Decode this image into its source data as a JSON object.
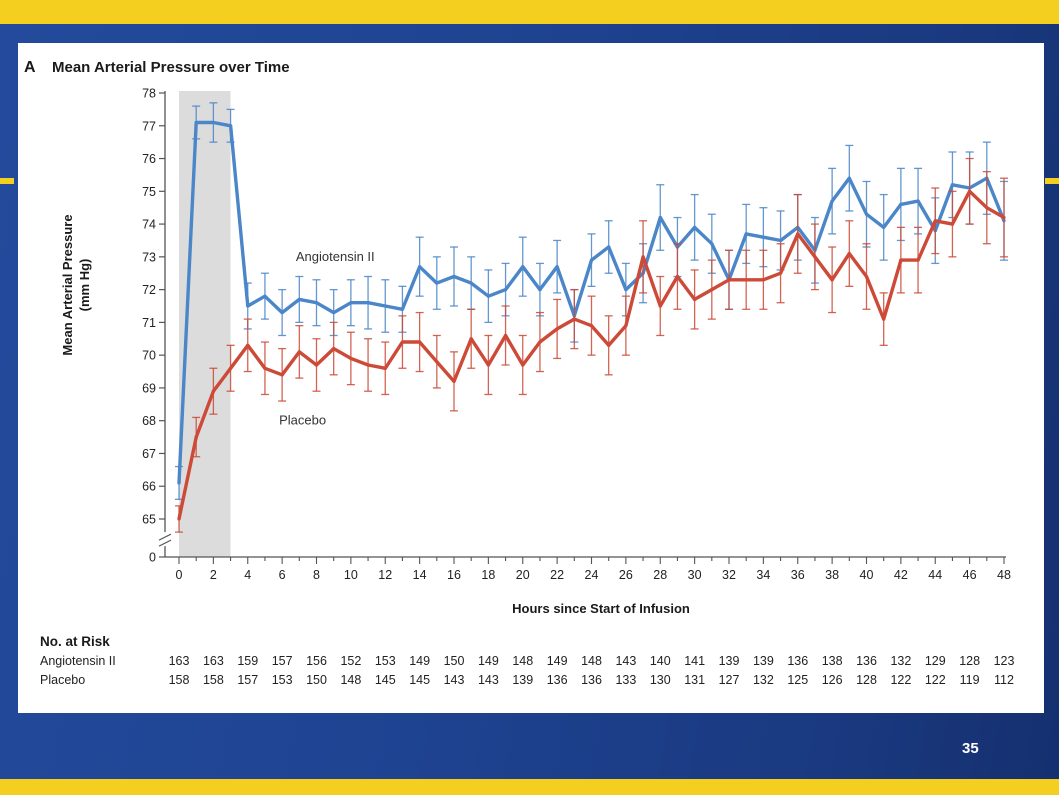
{
  "slide": {
    "number": "35",
    "colors": {
      "band": "#f4cf1f",
      "background": "#1e4391"
    }
  },
  "chart_data": {
    "type": "line",
    "panel_label": "A",
    "title": "Mean Arterial Pressure over Time",
    "xlabel": "Hours since Start of Infusion",
    "ylabel": [
      "Mean Arterial Pressure",
      "(mm Hg)"
    ],
    "xlim": [
      0,
      48
    ],
    "ylim": [
      64.5,
      78
    ],
    "y_axis_break": true,
    "x_ticks": [
      0,
      2,
      4,
      6,
      8,
      10,
      12,
      14,
      16,
      18,
      20,
      22,
      24,
      26,
      28,
      30,
      32,
      34,
      36,
      38,
      40,
      42,
      44,
      46,
      48
    ],
    "y_ticks": [
      65,
      66,
      67,
      68,
      69,
      70,
      71,
      72,
      73,
      74,
      75,
      76,
      77,
      78
    ],
    "y_zero_label": "0",
    "shaded_region": [
      0,
      3
    ],
    "error_bars": true,
    "x": [
      0,
      1,
      2,
      3,
      4,
      5,
      6,
      7,
      8,
      9,
      10,
      11,
      12,
      13,
      14,
      15,
      16,
      17,
      18,
      19,
      20,
      21,
      22,
      23,
      24,
      25,
      26,
      27,
      28,
      29,
      30,
      31,
      32,
      33,
      34,
      35,
      36,
      37,
      38,
      39,
      40,
      41,
      42,
      43,
      44,
      45,
      46,
      47,
      48
    ],
    "series": [
      {
        "name": "Angiotensin II",
        "color": "#4a86c8",
        "values": [
          66.1,
          77.1,
          77.1,
          77.0,
          71.5,
          71.8,
          71.3,
          71.7,
          71.6,
          71.3,
          71.6,
          71.6,
          71.5,
          71.4,
          72.7,
          72.2,
          72.4,
          72.2,
          71.8,
          72.0,
          72.7,
          72.0,
          72.7,
          71.2,
          72.9,
          73.3,
          72.0,
          72.5,
          74.2,
          73.3,
          73.9,
          73.4,
          72.3,
          73.7,
          73.6,
          73.5,
          73.9,
          73.2,
          74.7,
          75.4,
          74.3,
          73.9,
          74.6,
          74.7,
          73.8,
          75.2,
          75.1,
          75.4,
          74.1
        ],
        "errors": [
          0.5,
          0.5,
          0.6,
          0.5,
          0.7,
          0.7,
          0.7,
          0.7,
          0.7,
          0.7,
          0.7,
          0.8,
          0.8,
          0.7,
          0.9,
          0.8,
          0.9,
          0.8,
          0.8,
          0.8,
          0.9,
          0.8,
          0.8,
          0.8,
          0.8,
          0.8,
          0.8,
          0.9,
          1.0,
          0.9,
          1.0,
          0.9,
          0.9,
          0.9,
          0.9,
          0.9,
          1.0,
          1.0,
          1.0,
          1.0,
          1.0,
          1.0,
          1.1,
          1.0,
          1.0,
          1.0,
          1.1,
          1.1,
          1.2
        ]
      },
      {
        "name": "Placebo",
        "color": "#cc4a37",
        "values": [
          65.0,
          67.5,
          68.9,
          69.6,
          70.3,
          69.6,
          69.4,
          70.1,
          69.7,
          70.2,
          69.9,
          69.7,
          69.6,
          70.4,
          70.4,
          69.8,
          69.2,
          70.5,
          69.7,
          70.6,
          69.7,
          70.4,
          70.8,
          71.1,
          70.9,
          70.3,
          70.9,
          73.0,
          71.5,
          72.4,
          71.7,
          72.0,
          72.3,
          72.3,
          72.3,
          72.5,
          73.7,
          73.0,
          72.3,
          73.1,
          72.4,
          71.1,
          72.9,
          72.9,
          74.1,
          74.0,
          75.0,
          74.5,
          74.2
        ],
        "errors": [
          0.4,
          0.6,
          0.7,
          0.7,
          0.8,
          0.8,
          0.8,
          0.8,
          0.8,
          0.8,
          0.8,
          0.8,
          0.8,
          0.8,
          0.9,
          0.8,
          0.9,
          0.9,
          0.9,
          0.9,
          0.9,
          0.9,
          0.9,
          0.9,
          0.9,
          0.9,
          0.9,
          1.1,
          0.9,
          1.0,
          0.9,
          0.9,
          0.9,
          0.9,
          0.9,
          0.9,
          1.2,
          1.0,
          1.0,
          1.0,
          1.0,
          0.8,
          1.0,
          1.0,
          1.0,
          1.0,
          1.0,
          1.1,
          1.2
        ]
      }
    ],
    "series_labels": [
      {
        "text": "Angiotensin II",
        "x": 10,
        "y": 73.0
      },
      {
        "text": "Placebo",
        "x": 6,
        "y": 68.0
      }
    ],
    "risk_table": {
      "heading": "No. at Risk",
      "rows": [
        {
          "label": "Angiotensin II",
          "values": [
            "163",
            "163",
            "159",
            "157",
            "156",
            "152",
            "153",
            "149",
            "150",
            "149",
            "148",
            "149",
            "148",
            "143",
            "140",
            "141",
            "139",
            "139",
            "136",
            "138",
            "136",
            "132",
            "129",
            "128",
            "123"
          ]
        },
        {
          "label": "Placebo",
          "values": [
            "158",
            "158",
            "157",
            "153",
            "150",
            "148",
            "145",
            "145",
            "143",
            "143",
            "139",
            "136",
            "136",
            "133",
            "130",
            "131",
            "127",
            "132",
            "125",
            "126",
            "128",
            "122",
            "122",
            "119",
            "112"
          ]
        }
      ]
    }
  }
}
